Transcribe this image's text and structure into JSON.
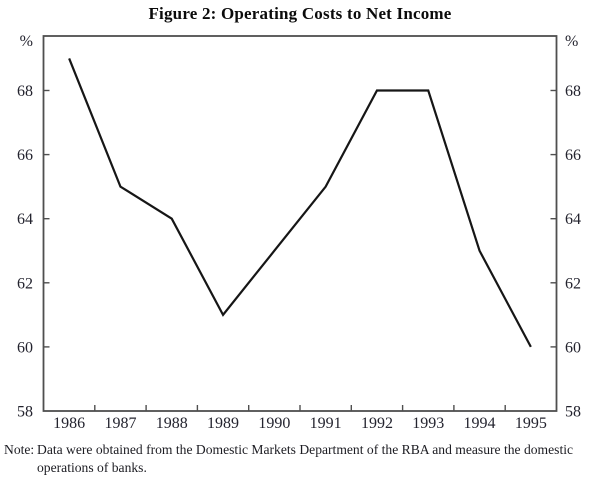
{
  "title": "Figure 2: Operating Costs to Net Income",
  "note": {
    "label": "Note:",
    "line1": "Data were obtained from the Domestic Markets Department of the RBA and measure the domestic",
    "line2": "operations of banks."
  },
  "chart_data": {
    "type": "line",
    "title": "Figure 2: Operating Costs to Net Income",
    "x": [
      1986,
      1987,
      1988,
      1989,
      1990,
      1991,
      1992,
      1993,
      1994,
      1995
    ],
    "series": [
      {
        "name": "Operating costs to net income",
        "values": [
          69,
          65,
          64,
          61,
          63,
          65,
          68,
          68,
          63,
          60
        ]
      }
    ],
    "unit_label_left": "%",
    "unit_label_right": "%",
    "xlabel": "",
    "ylabel": "%",
    "ylim": [
      58,
      69.7
    ],
    "yticks": [
      58,
      60,
      62,
      64,
      66,
      68
    ],
    "grid": false,
    "legend_position": "none",
    "line_color": "#161616",
    "axis_color": "#4f4f4f",
    "label_color": "#23232e"
  }
}
